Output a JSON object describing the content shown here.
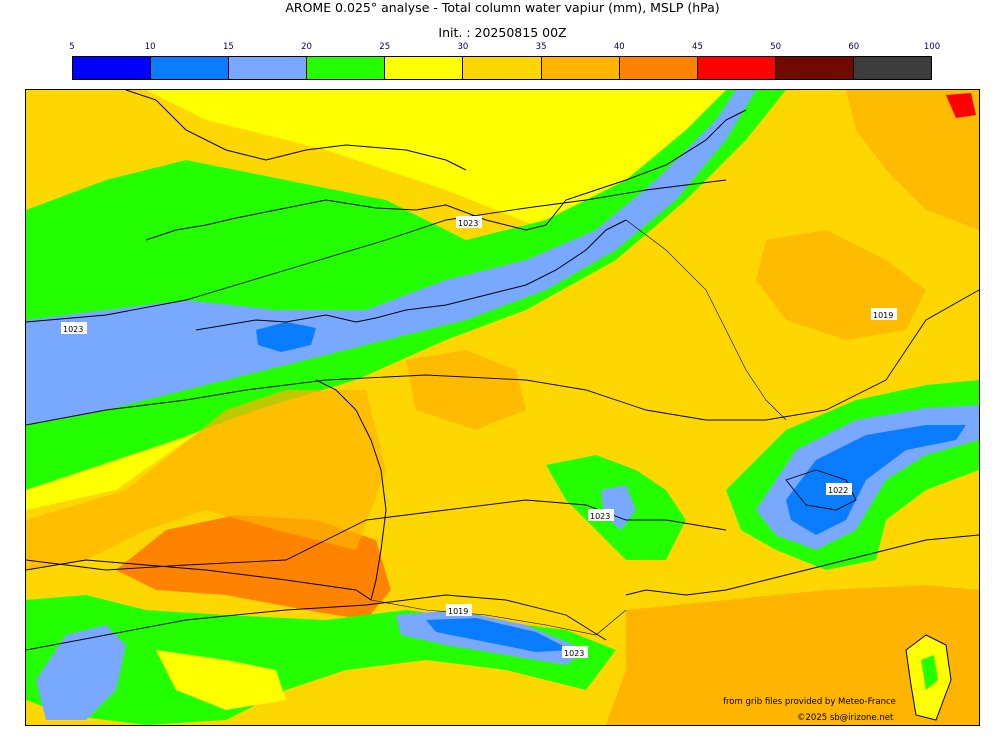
{
  "header": {
    "title": "AROME 0.025° analyse - Total column water vapiur (mm), MSLP (hPa)",
    "init": "Init. : 20250815 00Z"
  },
  "colorbar": {
    "ticks": [
      "5",
      "10",
      "15",
      "20",
      "25",
      "30",
      "35",
      "40",
      "45",
      "50",
      "60",
      "100"
    ],
    "colors": [
      "#0000ff",
      "#0a7cff",
      "#78a8ff",
      "#23ff00",
      "#ffff00",
      "#ffd700",
      "#ffb400",
      "#ff8200",
      "#ff0000",
      "#6e0a00",
      "#3c3c3c"
    ]
  },
  "map": {
    "isobar_labels": [
      "1023",
      "1023",
      "1019",
      "1023",
      "1022",
      "1019",
      "1023"
    ]
  },
  "footer": {
    "credit": "from grib files provided by Meteo-France",
    "copyright": "©2025 sb@irizone.net"
  }
}
